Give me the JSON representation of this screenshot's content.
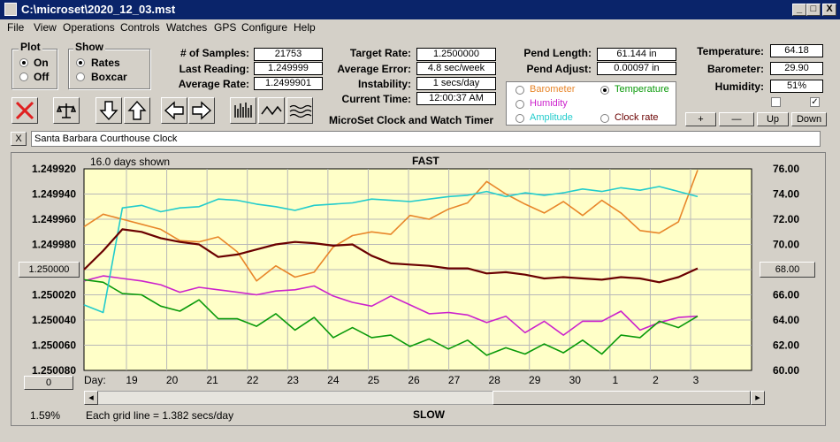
{
  "window": {
    "title": "C:\\microset\\2020_12_03.mst",
    "buttons": {
      "minimize": "_",
      "maximize": "□",
      "close": "X"
    }
  },
  "menu": [
    "File",
    "View",
    "Operations",
    "Controls",
    "Watches",
    "GPS",
    "Configure",
    "Help"
  ],
  "plot_group": {
    "title": "Plot",
    "options": [
      "On",
      "Off"
    ],
    "selected": "On"
  },
  "show_group": {
    "title": "Show",
    "options": [
      "Rates",
      "Boxcar"
    ],
    "selected": "Rates"
  },
  "stats": {
    "samples_label": "# of Samples:",
    "samples": "21753",
    "last_reading_label": "Last Reading:",
    "last_reading": "1.249999",
    "average_rate_label": "Average Rate:",
    "average_rate": "1.2499901",
    "target_rate_label": "Target Rate:",
    "target_rate": "1.2500000",
    "average_error_label": "Average Error:",
    "average_error": "4.8 sec/week",
    "instability_label": "Instability:",
    "instability": "1 secs/day",
    "current_time_label": "Current Time:",
    "current_time": "12:00:37 AM",
    "pend_length_label": "Pend Length:",
    "pend_length": "61.144 in",
    "pend_adjust_label": "Pend Adjust:",
    "pend_adjust": "0.00097 in",
    "temperature_label": "Temperature:",
    "temperature": "64.18",
    "barometer_label": "Barometer:",
    "barometer": "29.90",
    "humidity_label": "Humidity:",
    "humidity": "51%"
  },
  "app_caption": "MicroSet Clock and Watch Timer",
  "sensor_options": [
    {
      "label": "Barometer",
      "color": "#e8862a",
      "selected": false
    },
    {
      "label": "Temperature",
      "color": "#0a9a0a",
      "selected": true
    },
    {
      "label": "Humidity",
      "color": "#cc22cc",
      "selected": false
    },
    {
      "label": "Amplitude",
      "color": "#22cccc",
      "selected": false
    },
    {
      "label": "Clock rate",
      "color": "#6a0000",
      "selected": false
    }
  ],
  "adjust_buttons": [
    "+",
    "—",
    "Up",
    "Down"
  ],
  "checkboxes": [
    {
      "checked": false
    },
    {
      "checked": true
    }
  ],
  "toolbar_icons": [
    "stop-icon",
    "balance-icon",
    "arrow-down-icon",
    "arrow-up-icon",
    "arrow-left-icon",
    "arrow-right-icon",
    "histogram-icon",
    "wave-icon",
    "ripple-icon"
  ],
  "clock_name": "Santa Barbara Courthouse Clock",
  "clear_button": "X",
  "chart_header": {
    "days_shown": "16.0 days shown",
    "top_label": "FAST",
    "bottom_label": "SLOW"
  },
  "left_value_button": "1.250000",
  "right_value_button": "68.00",
  "zero_button": "0",
  "percent": "1.59%",
  "grid_note": "Each grid line = 1.382 secs/day",
  "day_label": "Day:",
  "chart_data": {
    "type": "line",
    "x_ticks": [
      "19",
      "20",
      "21",
      "22",
      "23",
      "24",
      "25",
      "26",
      "27",
      "28",
      "29",
      "30",
      "1",
      "2",
      "3"
    ],
    "y_left_ticks": [
      "1.249920",
      "1.249940",
      "1.249960",
      "1.249980",
      "1.250000",
      "1.250020",
      "1.250040",
      "1.250060",
      "1.250080"
    ],
    "y_right_ticks": [
      "76.00",
      "74.00",
      "72.00",
      "70.00",
      "68.00",
      "66.00",
      "64.00",
      "62.00",
      "60.00"
    ],
    "ylim_left": [
      1.24992,
      1.25008
    ],
    "ylim_right": [
      60,
      76
    ],
    "grid": true,
    "series": [
      {
        "name": "Barometer",
        "color": "#e8862a",
        "values": [
          71.4,
          72.4,
          72,
          71.6,
          71.2,
          70.3,
          70.2,
          70.6,
          69.4,
          67.1,
          68.3,
          67.4,
          67.8,
          69.8,
          70.7,
          71,
          70.8,
          72.3,
          72,
          72.8,
          73.3,
          75,
          74,
          73.2,
          72.5,
          73.4,
          72.3,
          73.5,
          72.5,
          71.1,
          70.9,
          71.8,
          75.9
        ]
      },
      {
        "name": "Temperature",
        "color": "#0a9a0a",
        "values": [
          67.2,
          67,
          66.1,
          66,
          65.1,
          64.7,
          65.6,
          64.1,
          64.1,
          63.5,
          64.5,
          63.2,
          64.2,
          62.6,
          63.4,
          62.6,
          62.8,
          61.9,
          62.5,
          61.7,
          62.4,
          61.2,
          61.8,
          61.3,
          62.1,
          61.4,
          62.4,
          61.3,
          62.8,
          62.6,
          63.9,
          63.4,
          64.3
        ]
      },
      {
        "name": "Humidity",
        "color": "#cc22cc",
        "values": [
          67.1,
          67.5,
          67.3,
          67.1,
          66.8,
          66.2,
          66.6,
          66.4,
          66.2,
          66,
          66.3,
          66.4,
          66.7,
          65.9,
          65.4,
          65.1,
          65.9,
          65.2,
          64.5,
          64.6,
          64.4,
          63.8,
          64.3,
          63,
          63.9,
          62.8,
          63.9,
          63.9,
          64.7,
          63.2,
          63.8,
          64.2,
          64.3
        ]
      },
      {
        "name": "Amplitude",
        "color": "#22cccc",
        "values": [
          65.2,
          64.6,
          72.9,
          73.1,
          72.6,
          72.9,
          73,
          73.6,
          73.5,
          73.2,
          73,
          72.7,
          73.1,
          73.2,
          73.3,
          73.6,
          73.5,
          73.4,
          73.6,
          73.8,
          73.9,
          74.2,
          73.8,
          74.1,
          73.9,
          74.1,
          74.4,
          74.2,
          74.5,
          74.3,
          74.6,
          74.2,
          73.8
        ]
      },
      {
        "name": "Clock rate",
        "color": "#6a0000",
        "values": [
          1.25,
          1.249985,
          1.249968,
          1.24997,
          1.249975,
          1.249978,
          1.24998,
          1.24999,
          1.249988,
          1.249984,
          1.24998,
          1.249978,
          1.249979,
          1.249981,
          1.24998,
          1.249989,
          1.249995,
          1.249996,
          1.249997,
          1.249999,
          1.249999,
          1.250003,
          1.250002,
          1.250004,
          1.250007,
          1.250006,
          1.250007,
          1.250008,
          1.250006,
          1.250007,
          1.25001,
          1.250006,
          1.249999
        ]
      }
    ]
  }
}
